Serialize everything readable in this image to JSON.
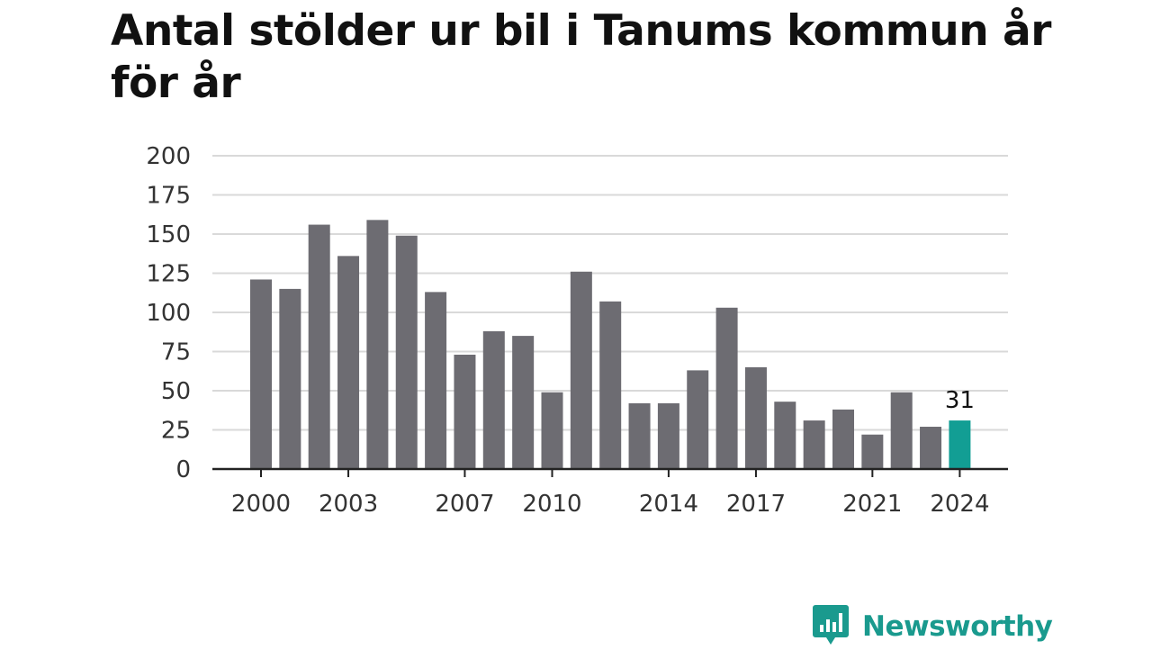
{
  "title": "Antal stölder ur bil i Tanums kommun år för år",
  "brand": {
    "name": "Newsworthy",
    "icon": "newsworthy-logo-icon",
    "color": "#1a9a8e"
  },
  "colors": {
    "bar": "#6d6c72",
    "highlight": "#129e94",
    "grid": "#d9d9d9",
    "axis": "#222222"
  },
  "chart_data": {
    "type": "bar",
    "title": "Antal stölder ur bil i Tanums kommun år för år",
    "xlabel": "",
    "ylabel": "",
    "ylim": [
      0,
      200
    ],
    "yticks": [
      0,
      25,
      50,
      75,
      100,
      125,
      150,
      175,
      200
    ],
    "categories": [
      2000,
      2001,
      2002,
      2003,
      2004,
      2005,
      2006,
      2007,
      2008,
      2009,
      2010,
      2011,
      2012,
      2013,
      2014,
      2015,
      2016,
      2017,
      2018,
      2019,
      2020,
      2021,
      2022,
      2023,
      2024
    ],
    "xtick_labels": [
      2000,
      2003,
      2007,
      2010,
      2014,
      2017,
      2021,
      2024
    ],
    "values": [
      121,
      115,
      156,
      136,
      159,
      149,
      113,
      73,
      88,
      85,
      49,
      126,
      107,
      42,
      42,
      63,
      103,
      65,
      43,
      31,
      38,
      22,
      49,
      27,
      31
    ],
    "highlight": {
      "category": 2024,
      "label": "31"
    },
    "grid": true,
    "legend": "none"
  }
}
